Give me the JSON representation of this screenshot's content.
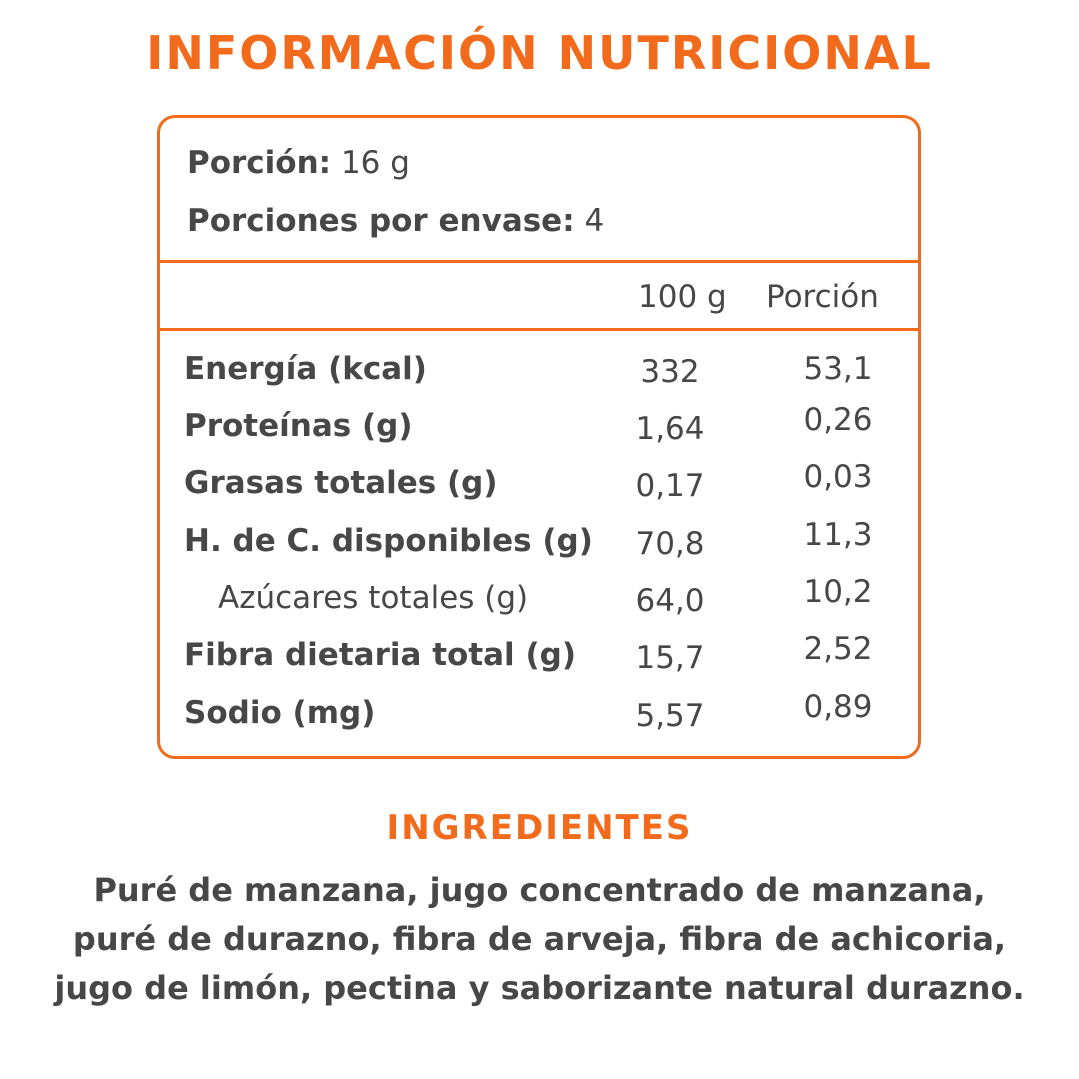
{
  "title": "INFORMACIÓN NUTRICIONAL",
  "serving": {
    "portion_label": "Porción:",
    "portion_value": "16 g",
    "per_pack_label": "Porciones por envase:",
    "per_pack_value": "4"
  },
  "columns": {
    "per100": "100 g",
    "per_portion": "Porción"
  },
  "nutrients": [
    {
      "name": "Energía (kcal)",
      "per100": "332",
      "portion": "53,1"
    },
    {
      "name": "Proteínas (g)",
      "per100": "1,64",
      "portion": "0,26"
    },
    {
      "name": "Grasas totales (g)",
      "per100": "0,17",
      "portion": "0,03"
    },
    {
      "name": "H. de C. disponibles (g)",
      "per100": "70,8",
      "portion": "11,3"
    },
    {
      "name": "Azúcares totales (g)",
      "per100": "64,0",
      "portion": "10,2"
    },
    {
      "name": "Fibra dietaria total (g)",
      "per100": "15,7",
      "portion": "2,52"
    },
    {
      "name": "Sodio (mg)",
      "per100": "5,57",
      "portion": "0,89"
    }
  ],
  "ingredients": {
    "title": "INGREDIENTES",
    "lines": [
      "Puré de manzana, jugo concentrado de manzana,",
      "puré de durazno, fibra de arveja, fibra de achicoria,",
      "jugo de limón, pectina y saborizante natural durazno."
    ]
  },
  "colors": {
    "accent": "#f26b1c",
    "text": "#474747",
    "background": "#ffffff"
  }
}
